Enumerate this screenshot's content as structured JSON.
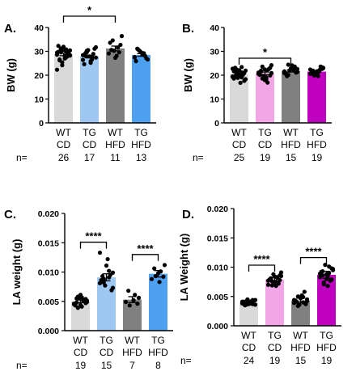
{
  "chart_data": [
    {
      "panel": "A.",
      "type": "bar",
      "categories": [
        [
          "WT",
          "CD"
        ],
        [
          "TG",
          "CD"
        ],
        [
          "WT",
          "HFD"
        ],
        [
          "TG",
          "HFD"
        ]
      ],
      "values": [
        28.7,
        27.8,
        31.2,
        28.5
      ],
      "sem": [
        0.5,
        0.55,
        1.0,
        0.55
      ],
      "colors": [
        "#d9d9d9",
        "#9ec7f2",
        "#808080",
        "#4ea1f0"
      ],
      "points": [
        [
          29.5,
          30.8,
          31.2,
          28.4,
          27.0,
          26.2,
          30.1,
          31.9,
          29.8,
          28.8,
          24.2,
          22.3,
          27.5,
          29.6,
          30.4,
          28.0,
          26.6,
          29.1,
          30.6,
          32.3,
          27.9,
          25.4,
          28.6,
          29.9,
          30.9,
          28.2
        ],
        [
          28.4,
          26.6,
          30.2,
          27.4,
          25.9,
          29.3,
          31.1,
          27.9,
          24.6,
          28.9,
          30.5,
          26.4,
          27.6,
          29.6,
          31.7,
          25.2,
          28.1
        ],
        [
          29.1,
          31.6,
          34.6,
          36.4,
          28.1,
          30.6,
          32.7,
          27.3,
          33.6,
          29.6,
          30.2
        ],
        [
          27.6,
          29.1,
          30.6,
          26.6,
          28.6,
          31.1,
          27.1,
          29.6,
          25.9,
          28.1,
          30.1,
          27.4,
          29.2
        ]
      ],
      "ylabel": "BW (g)",
      "ylim": [
        0,
        40
      ],
      "yticks": [
        "0",
        "10",
        "20",
        "30",
        "40"
      ],
      "sig": [
        {
          "from": 0,
          "to": 2,
          "label": "*"
        }
      ],
      "n_label": "n=",
      "n_values": [
        "26",
        "17",
        "11",
        "13"
      ]
    },
    {
      "panel": "B.",
      "type": "bar",
      "categories": [
        [
          "WT",
          "CD"
        ],
        [
          "TG",
          "CD"
        ],
        [
          "WT",
          "HFD"
        ],
        [
          "TG",
          "HFD"
        ]
      ],
      "values": [
        20.3,
        20.8,
        21.8,
        21.5
      ],
      "sem": [
        0.4,
        0.5,
        0.45,
        0.35
      ],
      "colors": [
        "#d9d9d9",
        "#f2a6e6",
        "#808080",
        "#bf00bf"
      ],
      "points": [
        [
          19.5,
          21.2,
          22.4,
          18.3,
          20.1,
          23.1,
          17.6,
          19.9,
          21.6,
          20.6,
          18.9,
          22.7,
          19.1,
          20.4,
          21.9,
          16.8,
          19.6,
          20.9,
          22.1,
          18.6,
          20.2,
          21.4,
          19.3,
          23.4,
          20.7
        ],
        [
          20.6,
          22.1,
          18.6,
          24.2,
          19.1,
          21.6,
          23.1,
          17.9,
          20.1,
          22.6,
          19.6,
          21.1,
          16.9,
          23.6,
          20.9,
          18.3,
          21.9,
          19.9,
          22.4
        ],
        [
          21.6,
          23.1,
          20.1,
          22.6,
          24.1,
          19.6,
          21.1,
          22.9,
          20.6,
          23.6,
          21.9,
          20.9,
          22.3,
          24.4,
          21.4
        ],
        [
          20.6,
          22.1,
          21.1,
          23.1,
          19.6,
          21.9,
          22.6,
          20.9,
          21.4,
          23.6,
          20.3,
          22.4,
          21.7,
          19.9,
          22.9,
          21.2,
          20.7,
          23.3,
          21.6
        ]
      ],
      "ylabel": "BW (g)",
      "ylim": [
        0,
        40
      ],
      "yticks": [
        "0",
        "10",
        "20",
        "30",
        "40"
      ],
      "sig": [
        {
          "from": 0,
          "to": 2,
          "label": "*"
        }
      ],
      "n_label": "n=",
      "n_values": [
        "25",
        "19",
        "15",
        "19"
      ]
    },
    {
      "panel": "C.",
      "type": "bar",
      "categories": [
        [
          "WT",
          "CD"
        ],
        [
          "TG",
          "CD"
        ],
        [
          "WT",
          "HFD"
        ],
        [
          "TG",
          "HFD"
        ]
      ],
      "values": [
        0.005,
        0.0091,
        0.0053,
        0.0097
      ],
      "sem": [
        0.00022,
        0.0006,
        0.0005,
        0.00055
      ],
      "colors": [
        "#d9d9d9",
        "#9ec7f2",
        "#808080",
        "#4ea1f0"
      ],
      "points": [
        [
          0.0045,
          0.0052,
          0.0058,
          0.0049,
          0.0041,
          0.0055,
          0.0047,
          0.0061,
          0.0043,
          0.005,
          0.0056,
          0.0046,
          0.0053,
          0.0039,
          0.0051,
          0.0057,
          0.0048,
          0.0054,
          0.0044
        ],
        [
          0.0081,
          0.0102,
          0.0088,
          0.0073,
          0.0122,
          0.0093,
          0.0069,
          0.0111,
          0.0086,
          0.0095,
          0.0077,
          0.0133,
          0.0091,
          0.0082,
          0.0099
        ],
        [
          0.0049,
          0.0061,
          0.0043,
          0.0056,
          0.0052,
          0.0068,
          0.0046
        ],
        [
          0.0088,
          0.0101,
          0.0093,
          0.0112,
          0.0083,
          0.0106,
          0.0092,
          0.0098
        ]
      ],
      "ylabel": "LA weight (g)",
      "ylim": [
        0,
        0.02
      ],
      "yticks": [
        "0.000",
        "0.005",
        "0.010",
        "0.015",
        "0.020"
      ],
      "sig": [
        {
          "from": 0,
          "to": 1,
          "label": "****"
        },
        {
          "from": 2,
          "to": 3,
          "label": "****"
        }
      ],
      "n_label": "n=",
      "n_values": [
        "19",
        "15",
        "7",
        "8"
      ]
    },
    {
      "panel": "D.",
      "type": "bar",
      "categories": [
        [
          "WT",
          "CD"
        ],
        [
          "TG",
          "CD"
        ],
        [
          "WT",
          "HFD"
        ],
        [
          "TG",
          "HFD"
        ]
      ],
      "values": [
        0.004,
        0.0079,
        0.0043,
        0.0087
      ],
      "sem": [
        0.00018,
        0.0004,
        0.0004,
        0.0006
      ],
      "colors": [
        "#d9d9d9",
        "#f2a6e6",
        "#808080",
        "#bf00bf"
      ],
      "points": [
        [
          0.0038,
          0.0042,
          0.0036,
          0.0044,
          0.004,
          0.0035,
          0.0043,
          0.0039,
          0.0041,
          0.0037,
          0.0045,
          0.004,
          0.0038,
          0.0042,
          0.0036,
          0.0041,
          0.0039,
          0.0043,
          0.0037,
          0.004,
          0.0044,
          0.0038,
          0.0041,
          0.0039
        ],
        [
          0.007,
          0.0083,
          0.0076,
          0.0091,
          0.0068,
          0.008,
          0.0086,
          0.0074,
          0.0079,
          0.0072,
          0.0088,
          0.0077,
          0.0082,
          0.0069,
          0.0085,
          0.0075,
          0.0081,
          0.0078,
          0.0084
        ],
        [
          0.0039,
          0.0049,
          0.0034,
          0.0045,
          0.0052,
          0.0041,
          0.0037,
          0.0047,
          0.0043,
          0.0058,
          0.0036,
          0.0044,
          0.004,
          0.005,
          0.0042
        ],
        [
          0.0089,
          0.0101,
          0.0074,
          0.0095,
          0.0068,
          0.0086,
          0.0098,
          0.008,
          0.0092,
          0.0077,
          0.0104,
          0.0083,
          0.009,
          0.0071,
          0.0097,
          0.0085,
          0.0093,
          0.0079,
          0.0088
        ]
      ],
      "ylabel": "LA Weight (g)",
      "ylim": [
        0,
        0.02
      ],
      "yticks": [
        "0.000",
        "0.005",
        "0.010",
        "0.015",
        "0.020"
      ],
      "sig": [
        {
          "from": 0,
          "to": 1,
          "label": "****"
        },
        {
          "from": 2,
          "to": 3,
          "label": "****"
        }
      ],
      "n_label": "n=",
      "n_values": [
        "24",
        "19",
        "15",
        "19"
      ]
    }
  ]
}
